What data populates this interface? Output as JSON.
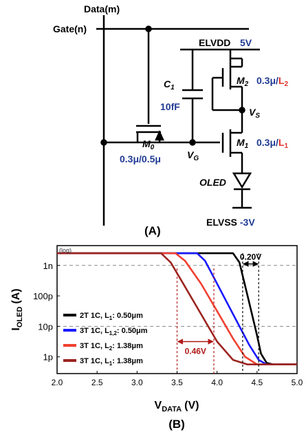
{
  "circuit": {
    "data_label": "Data(m)",
    "gate_label": "Gate(n)",
    "elvdd_label": "ELVDD",
    "elvdd_value": "5V",
    "elvss_label": "ELVSS",
    "elvss_value": "-3V",
    "c1_label": "C",
    "c1_sub": "1",
    "c1_value": "10fF",
    "m0_label": "M",
    "m0_sub": "0",
    "m0_size": "0.3μ/0.5μ",
    "m1_label": "M",
    "m1_sub": "1",
    "m1_w": "0.3μ/",
    "m1_l": "L",
    "m1_l_sub": "1",
    "m2_label": "M",
    "m2_sub": "2",
    "m2_w": "0.3μ/",
    "m2_l": "L",
    "m2_l_sub": "2",
    "vg_label": "V",
    "vg_sub": "G",
    "vs_label": "V",
    "vs_sub": "S",
    "oled_label": "OLED",
    "panel_label": "(A)"
  },
  "colors": {
    "blue_text": "#1f3a93",
    "red_text": "#e0332b",
    "series_2t1c": "#000000",
    "series_3t1c_l12": "#1a1aff",
    "series_3t1c_l2": "#f04030",
    "series_3t1c_l1": "#9b2420",
    "annotation_red": "#b01818",
    "grid": "#888888"
  },
  "chart_data": {
    "type": "line",
    "y_corner_label": "(log)",
    "xlabel_main": "V",
    "xlabel_sub": "DATA",
    "xlabel_unit": "(V)",
    "ylabel_main": "I",
    "ylabel_sub": "OLED",
    "ylabel_unit": "(A)",
    "xlim": [
      2.0,
      5.0
    ],
    "x_ticks": [
      2.0,
      2.5,
      3.0,
      3.5,
      4.0,
      4.5,
      5.0
    ],
    "x_tick_labels": [
      "2.0",
      "2.5",
      "3.0",
      "3.5",
      "4.0",
      "4.5",
      "5.0"
    ],
    "ylim_log10": [
      -12.55,
      -8.35
    ],
    "y_ticks_log10": [
      -9,
      -10,
      -11,
      -12
    ],
    "y_tick_labels": [
      "1n",
      "100p",
      "10p",
      "1p"
    ],
    "y_gridlines_log10": [
      -9,
      -11
    ],
    "legend_position": "bottom-left",
    "series": [
      {
        "name": "2T 1C, L",
        "name_sub": "1",
        "name_rest": ": 0.50μm",
        "x": [
          2.0,
          4.2,
          4.28,
          4.4,
          4.5,
          4.55,
          4.62,
          4.7,
          5.0
        ],
        "log10_y": [
          -8.6,
          -8.6,
          -8.9,
          -10.2,
          -11.3,
          -11.9,
          -12.2,
          -12.25,
          -12.25
        ]
      },
      {
        "name": "3T 1C, L",
        "name_sub": "1,2",
        "name_rest": ": 0.50μm",
        "x": [
          2.0,
          3.75,
          3.85,
          4.0,
          4.2,
          4.4,
          4.52,
          4.62,
          5.0
        ],
        "log10_y": [
          -8.6,
          -8.6,
          -8.85,
          -9.6,
          -10.6,
          -11.6,
          -12.1,
          -12.25,
          -12.25
        ]
      },
      {
        "name": "3T 1C, L",
        "name_sub": "2",
        "name_rest": ": 1.38μm",
        "x": [
          2.0,
          3.48,
          3.6,
          3.8,
          4.0,
          4.2,
          4.35,
          4.5,
          5.0
        ],
        "log10_y": [
          -8.6,
          -8.6,
          -8.85,
          -9.6,
          -10.5,
          -11.4,
          -12.0,
          -12.25,
          -12.25
        ]
      },
      {
        "name": "3T 1C, L",
        "name_sub": "1",
        "name_rest": ": 1.38μm",
        "x": [
          2.0,
          3.3,
          3.42,
          3.6,
          3.8,
          4.0,
          4.2,
          4.38,
          5.0
        ],
        "log10_y": [
          -8.6,
          -8.6,
          -8.9,
          -9.7,
          -10.6,
          -11.5,
          -12.1,
          -12.25,
          -12.25
        ]
      }
    ],
    "annotations": [
      {
        "label": "0.20V",
        "x_from": 4.32,
        "x_to": 4.52,
        "log10_y": -8.95
      },
      {
        "label": "0.46V",
        "x_from": 3.5,
        "x_to": 3.96,
        "log10_y": -11.5
      }
    ],
    "panel_label": "(B)"
  }
}
